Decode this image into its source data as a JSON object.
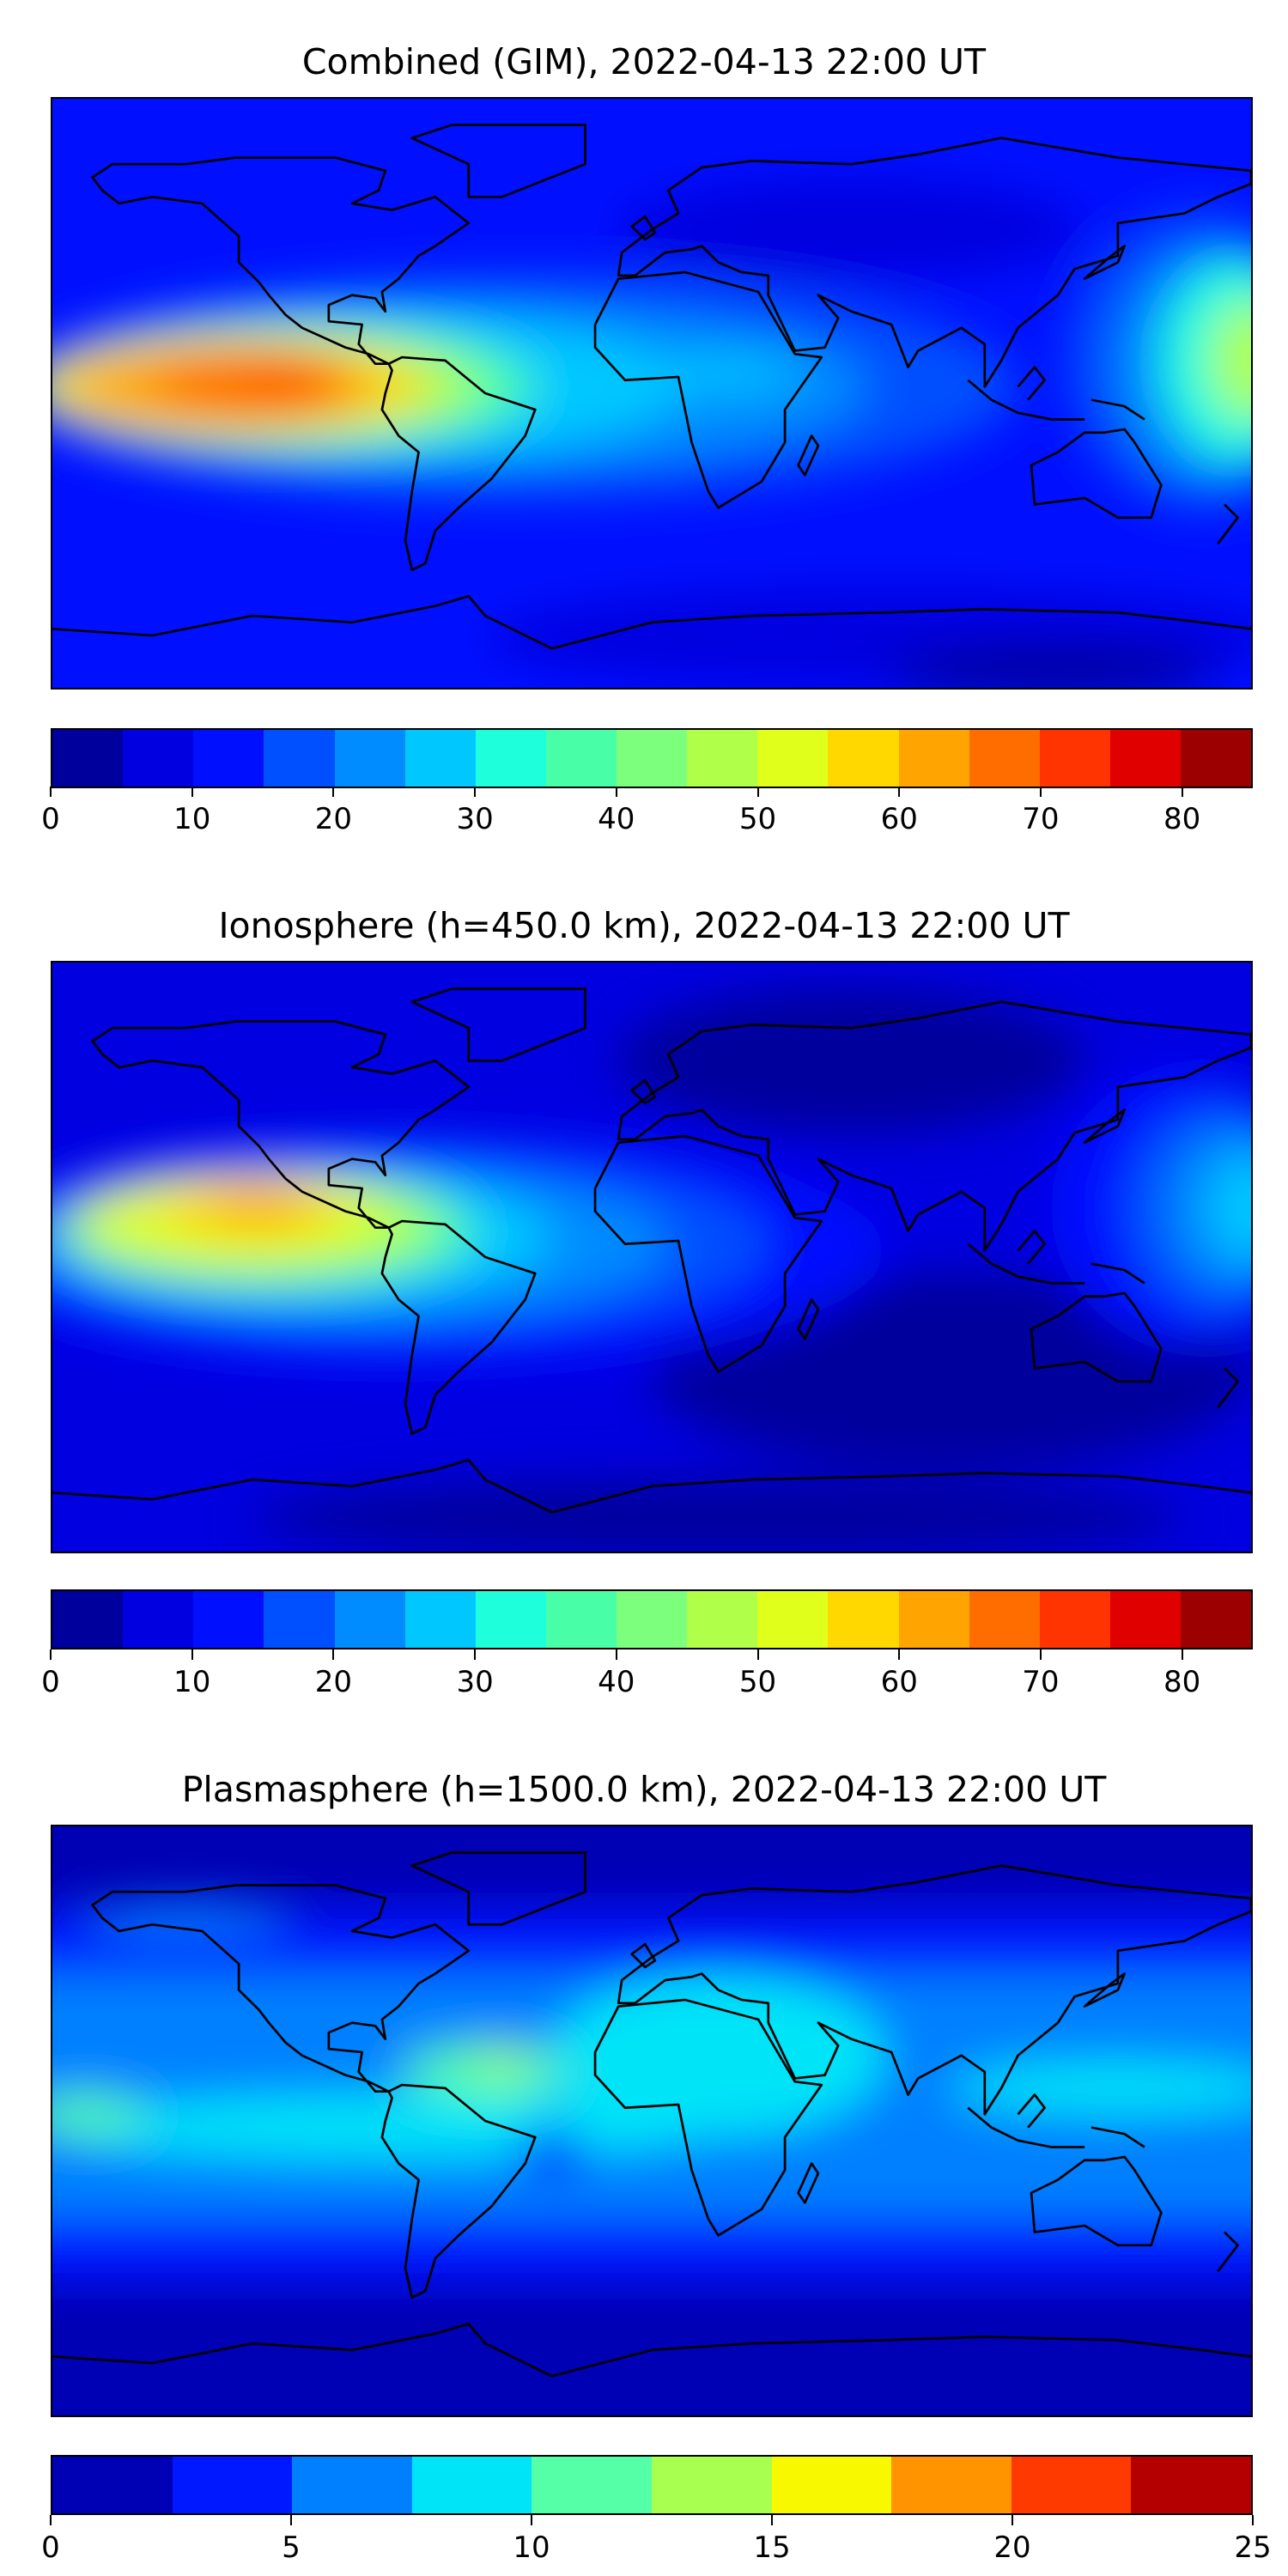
{
  "chart_data": [
    {
      "type": "heatmap",
      "title": "Combined (GIM), 2022-04-13 22:00 UT",
      "xlabel": "",
      "ylabel": "",
      "projection": "plate-carree world map with coastlines",
      "levels": [
        0,
        5,
        10,
        15,
        20,
        25,
        30,
        35,
        40,
        45,
        50,
        55,
        60,
        65,
        70,
        75,
        80,
        85
      ],
      "colorbar_ticks": [
        "0",
        "10",
        "20",
        "30",
        "40",
        "50",
        "60",
        "70",
        "80"
      ],
      "colorbar_range": [
        0,
        85
      ],
      "colors": [
        "#00009c",
        "#0000e0",
        "#0010ff",
        "#0050ff",
        "#008cff",
        "#00c8ff",
        "#1effdc",
        "#48ffa8",
        "#7cff7c",
        "#b0ff48",
        "#e0ff1a",
        "#ffd800",
        "#ffa400",
        "#ff6c00",
        "#ff3400",
        "#e00000",
        "#9c0000"
      ],
      "peak_region": "equatorial Pacific west of South America, 70-75"
    },
    {
      "type": "heatmap",
      "title": "Ionosphere  (h=450.0 km), 2022-04-13 22:00 UT",
      "xlabel": "",
      "ylabel": "",
      "projection": "plate-carree world map with coastlines",
      "levels": [
        0,
        5,
        10,
        15,
        20,
        25,
        30,
        35,
        40,
        45,
        50,
        55,
        60,
        65,
        70,
        75,
        80,
        85
      ],
      "colorbar_ticks": [
        "0",
        "10",
        "20",
        "30",
        "40",
        "50",
        "60",
        "70",
        "80"
      ],
      "colorbar_range": [
        0,
        85
      ],
      "colors": [
        "#00009c",
        "#0000e0",
        "#0010ff",
        "#0050ff",
        "#008cff",
        "#00c8ff",
        "#1effdc",
        "#48ffa8",
        "#7cff7c",
        "#b0ff48",
        "#e0ff1a",
        "#ffd800",
        "#ffa400",
        "#ff6c00",
        "#ff3400",
        "#e00000",
        "#9c0000"
      ],
      "peak_region": "equatorial Pacific, 60-65"
    },
    {
      "type": "heatmap",
      "title": "Plasmasphere (h=1500.0 km), 2022-04-13 22:00 UT",
      "xlabel": "",
      "ylabel": "",
      "projection": "plate-carree world map with coastlines",
      "levels": [
        0,
        2.5,
        5,
        7.5,
        10,
        12.5,
        15,
        17.5,
        20,
        22.5,
        25
      ],
      "colorbar_ticks": [
        "0",
        "5",
        "10",
        "15",
        "20",
        "25"
      ],
      "colorbar_range": [
        0,
        25
      ],
      "colors": [
        "#0000b4",
        "#0018ff",
        "#0080ff",
        "#00e4f8",
        "#54ffa8",
        "#a8ff50",
        "#f8f800",
        "#ff9400",
        "#ff3a00",
        "#b40000"
      ],
      "peak_region": "tropical Atlantic / Pacific, 12.5-15"
    }
  ]
}
